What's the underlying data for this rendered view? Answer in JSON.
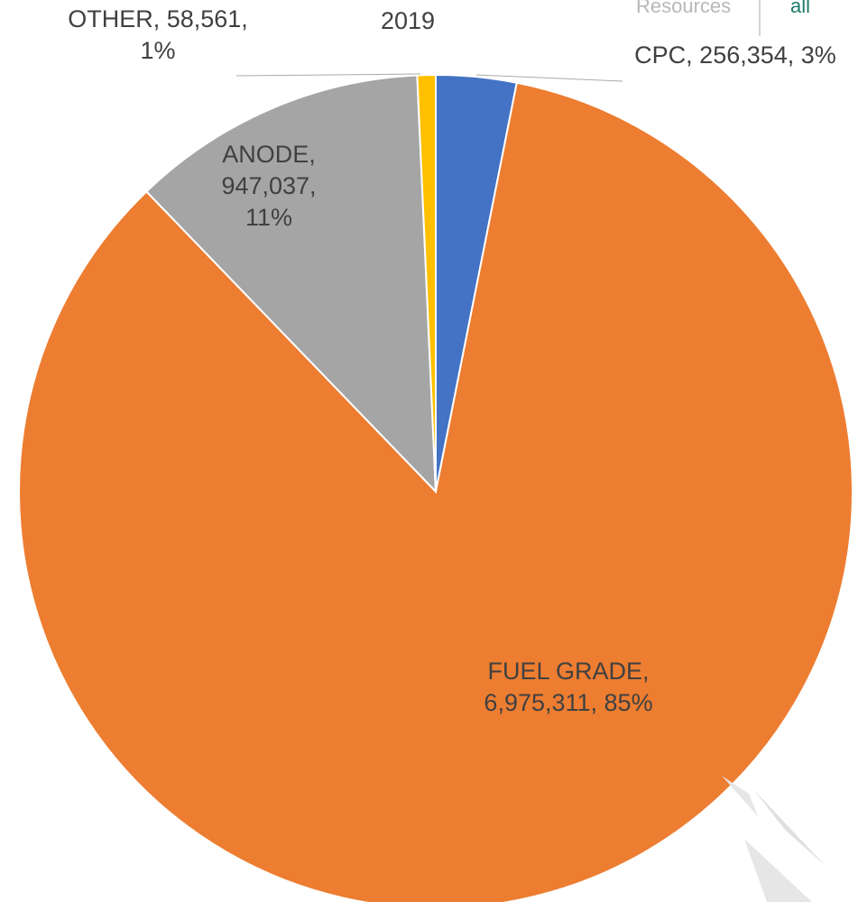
{
  "chart_data": {
    "type": "pie",
    "title": "2019",
    "header_texts": [
      "Resources",
      "all"
    ],
    "categories": [
      "CPC",
      "FUEL GRADE",
      "ANODE",
      "OTHER"
    ],
    "values": [
      256354,
      6975311,
      947037,
      58561
    ],
    "value_labels": [
      "CPC, 256,354, 3%",
      "FUEL GRADE, 6,975,311, 85%",
      "ANODE, 947,037, 11%",
      "OTHER, 58,561, 1%"
    ],
    "colors": [
      "#4472c4",
      "#ed7d31",
      "#a5a5a5",
      "#ffc000"
    ]
  }
}
